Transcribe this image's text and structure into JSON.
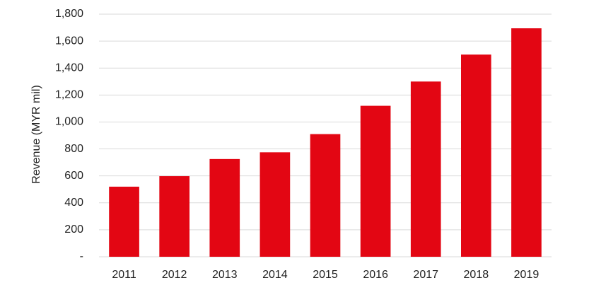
{
  "chart_data": {
    "type": "bar",
    "y_label": "Revenue (MYR mil)",
    "categories": [
      "2011",
      "2012",
      "2013",
      "2014",
      "2015",
      "2016",
      "2017",
      "2018",
      "2019"
    ],
    "values": [
      520,
      598,
      725,
      775,
      910,
      1120,
      1300,
      1500,
      1695
    ],
    "color": "#e30613",
    "ylim": [
      0,
      1800
    ],
    "yticks": [
      {
        "value": 0,
        "label": "-"
      },
      200,
      400,
      600,
      800,
      {
        "value": 1000,
        "label": "1,000"
      },
      {
        "value": 1200,
        "label": "1,200"
      },
      {
        "value": 1400,
        "label": "1,400"
      },
      {
        "value": 1600,
        "label": "1,600"
      },
      {
        "value": 1800,
        "label": "1,800"
      }
    ],
    "grid": true
  }
}
